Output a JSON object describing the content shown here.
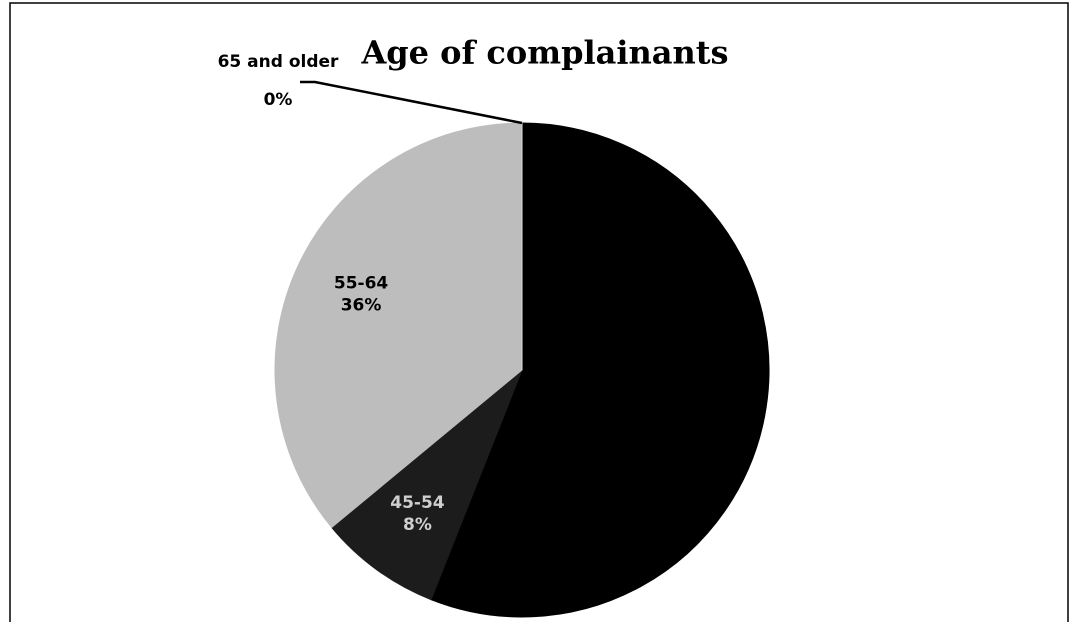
{
  "chart_data": {
    "type": "pie",
    "title": "Age of complainants",
    "categories": [
      null,
      "45-54",
      "55-64",
      "65 and older"
    ],
    "values": [
      56,
      8,
      36,
      0
    ],
    "value_labels": [
      null,
      "8%",
      "36%",
      "0%"
    ],
    "colors": [
      "#000000",
      "#1c1c1c",
      "#bdbdbd",
      "#e0e0e0"
    ]
  }
}
